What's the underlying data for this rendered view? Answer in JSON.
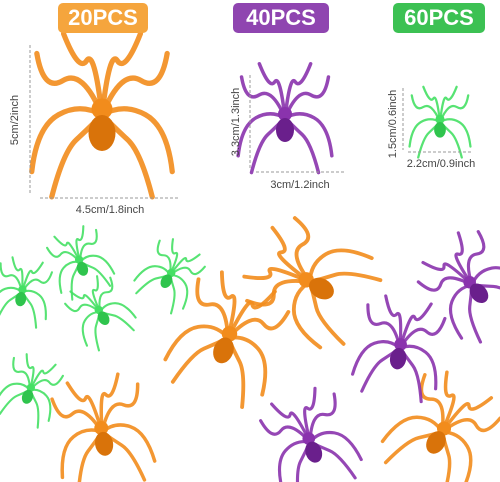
{
  "products": [
    {
      "count": "20PCS",
      "height": "5cm/2inch",
      "width": "4.5cm/1.8inch"
    },
    {
      "count": "40PCS",
      "height": "3.3cm/1.3inch",
      "width": "3cm/1.2inch"
    },
    {
      "count": "60PCS",
      "height": "1.5cm/0.6inch",
      "width": "2.2cm/0.9inch"
    }
  ]
}
